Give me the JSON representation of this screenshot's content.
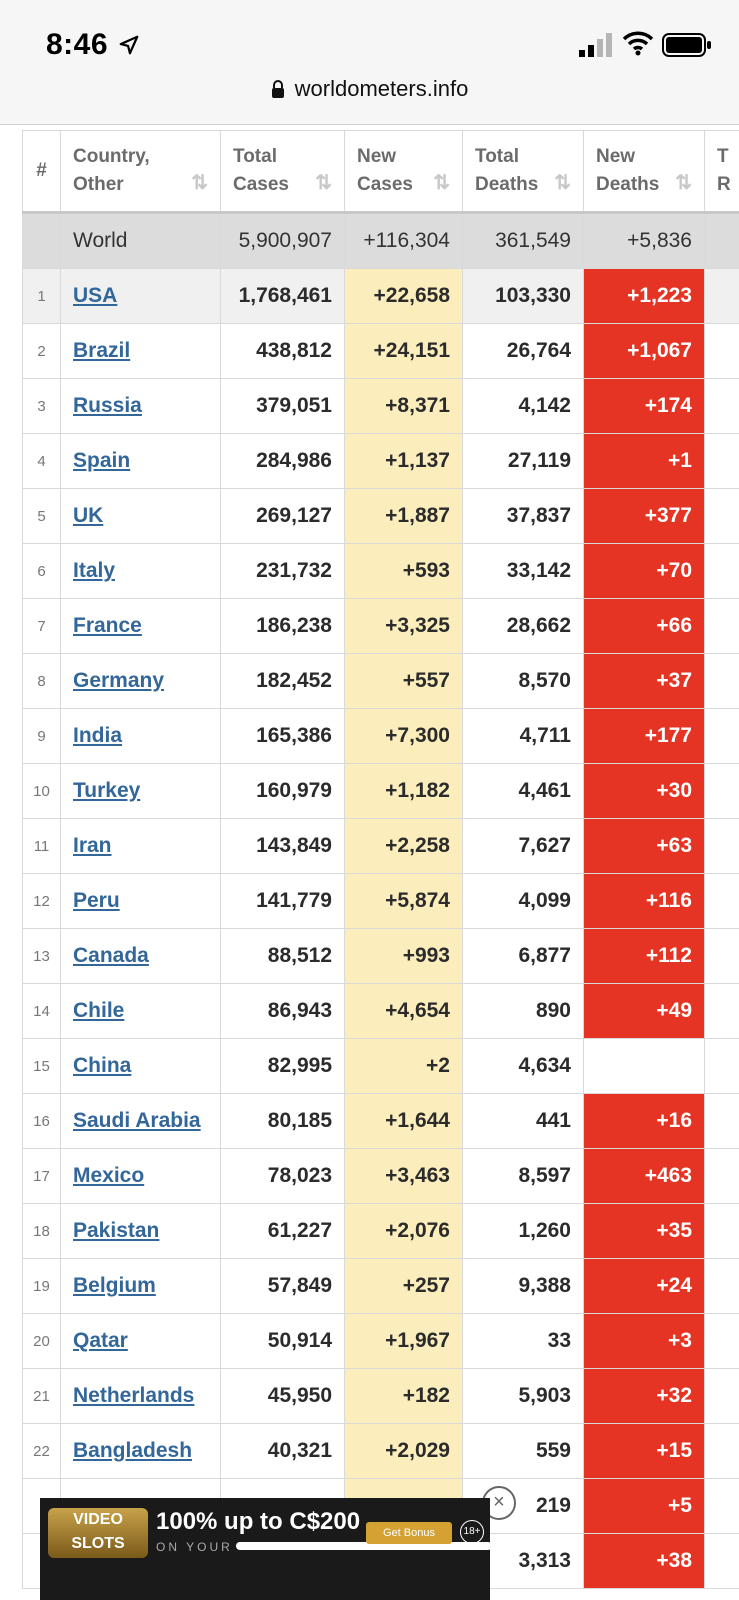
{
  "status": {
    "time": "8:46"
  },
  "browser": {
    "url": "worldometers.info"
  },
  "table": {
    "headers": [
      {
        "line1": "#",
        "line2": ""
      },
      {
        "line1": "Country,",
        "line2": "Other"
      },
      {
        "line1": "Total",
        "line2": "Cases"
      },
      {
        "line1": "New",
        "line2": "Cases"
      },
      {
        "line1": "Total",
        "line2": "Deaths"
      },
      {
        "line1": "New",
        "line2": "Deaths"
      },
      {
        "line1": "T",
        "line2": "R"
      }
    ],
    "world": {
      "country": "World",
      "total_cases": "5,900,907",
      "new_cases": "+116,304",
      "total_deaths": "361,549",
      "new_deaths": "+5,836"
    },
    "rows": [
      {
        "rank": "1",
        "country": "USA",
        "total_cases": "1,768,461",
        "new_cases": "+22,658",
        "total_deaths": "103,330",
        "new_deaths": "+1,223"
      },
      {
        "rank": "2",
        "country": "Brazil",
        "total_cases": "438,812",
        "new_cases": "+24,151",
        "total_deaths": "26,764",
        "new_deaths": "+1,067"
      },
      {
        "rank": "3",
        "country": "Russia",
        "total_cases": "379,051",
        "new_cases": "+8,371",
        "total_deaths": "4,142",
        "new_deaths": "+174"
      },
      {
        "rank": "4",
        "country": "Spain",
        "total_cases": "284,986",
        "new_cases": "+1,137",
        "total_deaths": "27,119",
        "new_deaths": "+1"
      },
      {
        "rank": "5",
        "country": "UK",
        "total_cases": "269,127",
        "new_cases": "+1,887",
        "total_deaths": "37,837",
        "new_deaths": "+377"
      },
      {
        "rank": "6",
        "country": "Italy",
        "total_cases": "231,732",
        "new_cases": "+593",
        "total_deaths": "33,142",
        "new_deaths": "+70"
      },
      {
        "rank": "7",
        "country": "France",
        "total_cases": "186,238",
        "new_cases": "+3,325",
        "total_deaths": "28,662",
        "new_deaths": "+66"
      },
      {
        "rank": "8",
        "country": "Germany",
        "total_cases": "182,452",
        "new_cases": "+557",
        "total_deaths": "8,570",
        "new_deaths": "+37"
      },
      {
        "rank": "9",
        "country": "India",
        "total_cases": "165,386",
        "new_cases": "+7,300",
        "total_deaths": "4,711",
        "new_deaths": "+177"
      },
      {
        "rank": "10",
        "country": "Turkey",
        "total_cases": "160,979",
        "new_cases": "+1,182",
        "total_deaths": "4,461",
        "new_deaths": "+30"
      },
      {
        "rank": "11",
        "country": "Iran",
        "total_cases": "143,849",
        "new_cases": "+2,258",
        "total_deaths": "7,627",
        "new_deaths": "+63"
      },
      {
        "rank": "12",
        "country": "Peru",
        "total_cases": "141,779",
        "new_cases": "+5,874",
        "total_deaths": "4,099",
        "new_deaths": "+116"
      },
      {
        "rank": "13",
        "country": "Canada",
        "total_cases": "88,512",
        "new_cases": "+993",
        "total_deaths": "6,877",
        "new_deaths": "+112"
      },
      {
        "rank": "14",
        "country": "Chile",
        "total_cases": "86,943",
        "new_cases": "+4,654",
        "total_deaths": "890",
        "new_deaths": "+49"
      },
      {
        "rank": "15",
        "country": "China",
        "total_cases": "82,995",
        "new_cases": "+2",
        "total_deaths": "4,634",
        "new_deaths": ""
      },
      {
        "rank": "16",
        "country": "Saudi Arabia",
        "total_cases": "80,185",
        "new_cases": "+1,644",
        "total_deaths": "441",
        "new_deaths": "+16"
      },
      {
        "rank": "17",
        "country": "Mexico",
        "total_cases": "78,023",
        "new_cases": "+3,463",
        "total_deaths": "8,597",
        "new_deaths": "+463"
      },
      {
        "rank": "18",
        "country": "Pakistan",
        "total_cases": "61,227",
        "new_cases": "+2,076",
        "total_deaths": "1,260",
        "new_deaths": "+35"
      },
      {
        "rank": "19",
        "country": "Belgium",
        "total_cases": "57,849",
        "new_cases": "+257",
        "total_deaths": "9,388",
        "new_deaths": "+24"
      },
      {
        "rank": "20",
        "country": "Qatar",
        "total_cases": "50,914",
        "new_cases": "+1,967",
        "total_deaths": "33",
        "new_deaths": "+3"
      },
      {
        "rank": "21",
        "country": "Netherlands",
        "total_cases": "45,950",
        "new_cases": "+182",
        "total_deaths": "5,903",
        "new_deaths": "+32"
      },
      {
        "rank": "22",
        "country": "Bangladesh",
        "total_cases": "40,321",
        "new_cases": "+2,029",
        "total_deaths": "559",
        "new_deaths": "+15"
      },
      {
        "rank": "",
        "country": "",
        "total_cases": "",
        "new_cases": "",
        "total_deaths": "219",
        "new_deaths": "+5"
      },
      {
        "rank": "",
        "country": "",
        "total_cases": "",
        "new_cases": "",
        "total_deaths": "3,313",
        "new_deaths": "+38"
      }
    ]
  },
  "ad": {
    "logo": "VIDEO SLOTS",
    "title": "100% up to C$200",
    "subtitle": "ON YOUR",
    "button": "Get Bonus",
    "age": "18+",
    "close": "×"
  },
  "colors": {
    "new_cases_bg": "#fbeebc",
    "new_deaths_bg": "#e53423",
    "link": "#336699"
  }
}
